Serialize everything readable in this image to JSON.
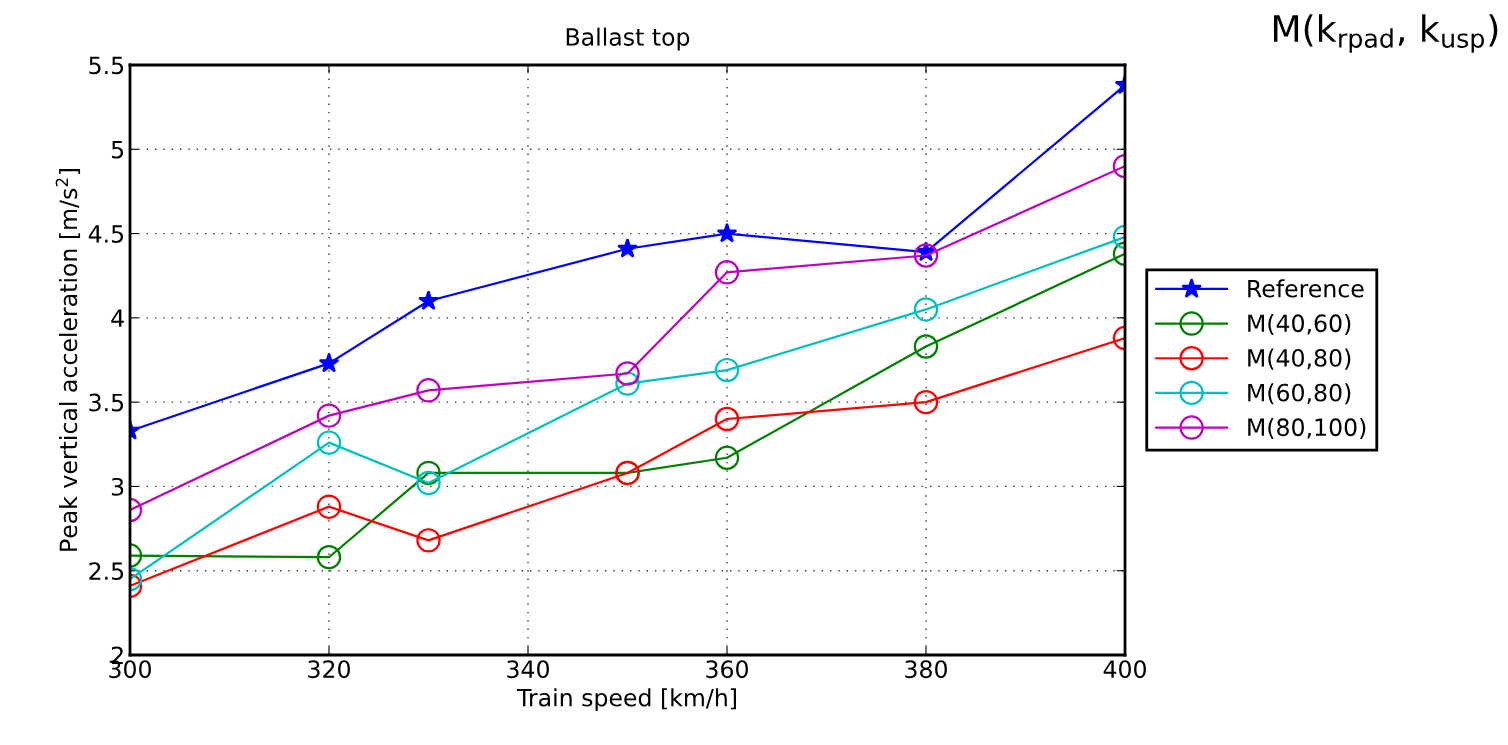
{
  "chart_data": {
    "type": "line",
    "title": "Ballast top",
    "xlabel": "Train speed [km/h]",
    "ylabel": "Peak vertical acceleration [m/s$^{2}$]",
    "annotations": [
      "M(k$_{rpad}$, k$_{usp}$)"
    ],
    "x": [
      300,
      320,
      330,
      350,
      360,
      380,
      400
    ],
    "series": [
      {
        "name": "Reference",
        "color": "#0000ff",
        "marker": "star",
        "values": [
          3.33,
          3.73,
          4.1,
          4.41,
          4.5,
          4.39,
          5.38
        ]
      },
      {
        "name": "M(40,60)",
        "color": "#008000",
        "marker": "circle",
        "values": [
          2.59,
          2.58,
          3.08,
          3.08,
          3.17,
          3.83,
          4.38
        ]
      },
      {
        "name": "M(40,80)",
        "color": "#ff0000",
        "marker": "circle",
        "values": [
          2.41,
          2.88,
          2.68,
          3.08,
          3.4,
          3.5,
          3.88
        ]
      },
      {
        "name": "M(60,80)",
        "color": "#00bfbf",
        "marker": "circle",
        "values": [
          2.45,
          3.26,
          3.02,
          3.61,
          3.69,
          4.05,
          4.48
        ]
      },
      {
        "name": "M(80,100)",
        "color": "#bf00bf",
        "marker": "circle",
        "values": [
          2.86,
          3.42,
          3.57,
          3.67,
          4.27,
          4.37,
          4.9
        ]
      }
    ],
    "xlim": [
      300,
      400
    ],
    "xticks": [
      300,
      320,
      340,
      360,
      380,
      400
    ],
    "ylim": [
      2,
      5.5
    ],
    "yticks": [
      2,
      2.5,
      3,
      3.5,
      4,
      4.5,
      5,
      5.5
    ],
    "grid": true,
    "legend": "right",
    "line_style": "solid"
  }
}
